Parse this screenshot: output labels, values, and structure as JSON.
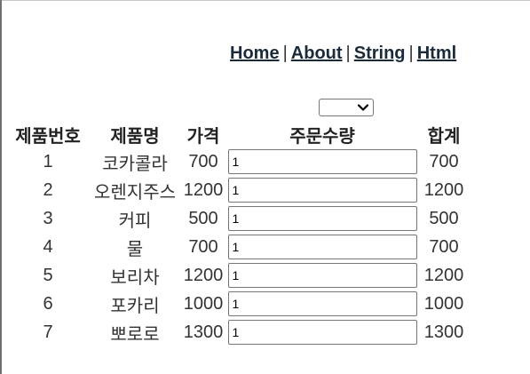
{
  "nav": {
    "links": [
      "Home",
      "About",
      "String",
      "Html"
    ],
    "separator": "|"
  },
  "dropdown": {
    "selected": ""
  },
  "table": {
    "headers": [
      "제품번호",
      "제품명",
      "가격",
      "주문수량",
      "합계"
    ],
    "rows": [
      {
        "no": "1",
        "name": "코카콜라",
        "price": "700",
        "qty": "1",
        "sum": "700"
      },
      {
        "no": "2",
        "name": "오렌지주스",
        "price": "1200",
        "qty": "1",
        "sum": "1200"
      },
      {
        "no": "3",
        "name": "커피",
        "price": "500",
        "qty": "1",
        "sum": "500"
      },
      {
        "no": "4",
        "name": "물",
        "price": "700",
        "qty": "1",
        "sum": "700"
      },
      {
        "no": "5",
        "name": "보리차",
        "price": "1200",
        "qty": "1",
        "sum": "1200"
      },
      {
        "no": "6",
        "name": "포카리",
        "price": "1000",
        "qty": "1",
        "sum": "1000"
      },
      {
        "no": "7",
        "name": "뽀로로",
        "price": "1300",
        "qty": "1",
        "sum": "1300"
      }
    ]
  }
}
